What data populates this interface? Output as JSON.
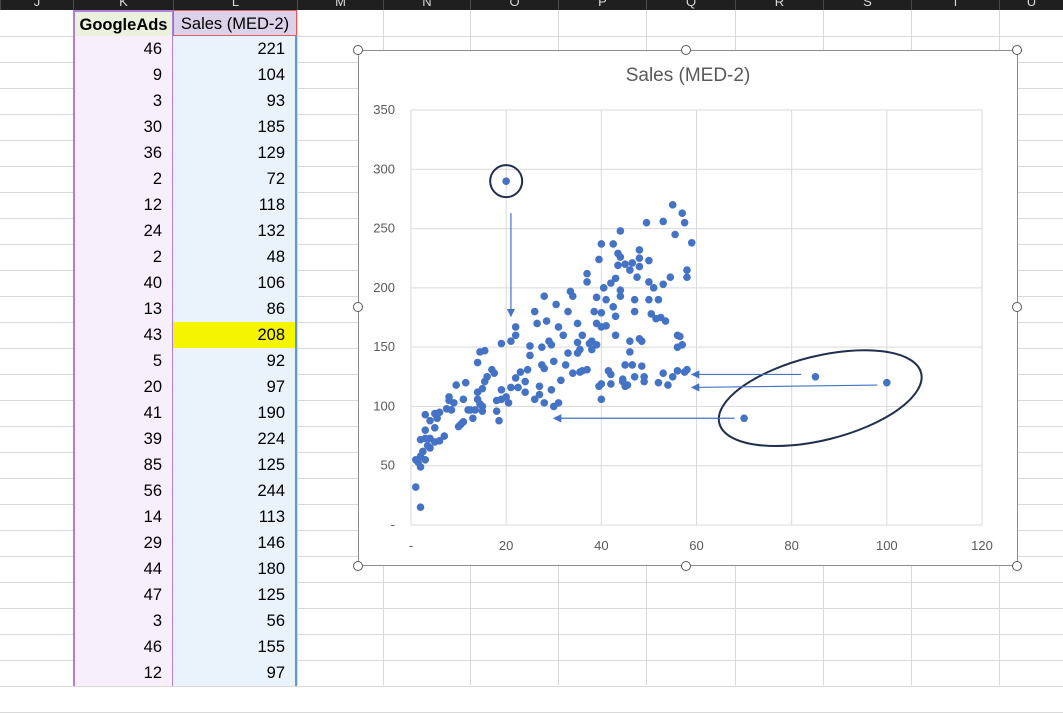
{
  "column_letters": [
    "J",
    "K",
    "L",
    "M",
    "N",
    "O",
    "P",
    "Q",
    "R",
    "S",
    "T",
    "U"
  ],
  "table": {
    "header_k": "GoogleAds",
    "header_l": "Sales (MED-2)",
    "rows": [
      {
        "k": "46",
        "l": "221"
      },
      {
        "k": "9",
        "l": "104"
      },
      {
        "k": "3",
        "l": "93"
      },
      {
        "k": "30",
        "l": "185"
      },
      {
        "k": "36",
        "l": "129"
      },
      {
        "k": "2",
        "l": "72"
      },
      {
        "k": "12",
        "l": "118"
      },
      {
        "k": "24",
        "l": "132"
      },
      {
        "k": "2",
        "l": "48"
      },
      {
        "k": "40",
        "l": "106"
      },
      {
        "k": "13",
        "l": "86"
      },
      {
        "k": "43",
        "l": "208"
      },
      {
        "k": "5",
        "l": "92"
      },
      {
        "k": "20",
        "l": "97"
      },
      {
        "k": "41",
        "l": "190"
      },
      {
        "k": "39",
        "l": "224"
      },
      {
        "k": "85",
        "l": "125"
      },
      {
        "k": "56",
        "l": "244"
      },
      {
        "k": "14",
        "l": "113"
      },
      {
        "k": "29",
        "l": "146"
      },
      {
        "k": "44",
        "l": "180"
      },
      {
        "k": "47",
        "l": "125"
      },
      {
        "k": "3",
        "l": "56"
      },
      {
        "k": "46",
        "l": "155"
      },
      {
        "k": "12",
        "l": "97"
      }
    ],
    "highlight_color": "#f5f500"
  },
  "chart_data": {
    "type": "scatter",
    "title": "Sales (MED-2)",
    "xlim": [
      0,
      120
    ],
    "ylim": [
      0,
      350
    ],
    "x_ticks": [
      "-",
      "20",
      "40",
      "60",
      "80",
      "100",
      "120"
    ],
    "y_ticks": [
      "-",
      "50",
      "100",
      "150",
      "200",
      "250",
      "300",
      "350"
    ],
    "grid": true,
    "marker_color": "#4472c4",
    "points": [
      [
        1,
        32
      ],
      [
        2,
        15
      ],
      [
        1,
        55
      ],
      [
        1.5,
        53
      ],
      [
        2,
        49
      ],
      [
        2,
        58
      ],
      [
        2,
        72
      ],
      [
        2.5,
        62
      ],
      [
        3,
        73
      ],
      [
        3,
        55
      ],
      [
        3,
        80
      ],
      [
        3,
        93
      ],
      [
        3.5,
        67
      ],
      [
        4,
        88
      ],
      [
        4,
        65
      ],
      [
        4,
        73
      ],
      [
        5,
        70
      ],
      [
        5,
        82
      ],
      [
        5,
        94
      ],
      [
        5.5,
        90
      ],
      [
        6,
        95
      ],
      [
        6,
        71
      ],
      [
        7,
        75
      ],
      [
        7.5,
        98
      ],
      [
        8,
        108
      ],
      [
        8,
        105
      ],
      [
        8.5,
        97
      ],
      [
        9,
        103
      ],
      [
        9.5,
        118
      ],
      [
        10,
        83
      ],
      [
        10.5,
        85
      ],
      [
        11,
        87
      ],
      [
        11,
        106
      ],
      [
        11.5,
        120
      ],
      [
        12,
        97
      ],
      [
        12.5,
        97
      ],
      [
        13,
        90
      ],
      [
        13.5,
        97
      ],
      [
        14,
        106
      ],
      [
        14,
        112
      ],
      [
        14.5,
        102
      ],
      [
        15,
        115
      ],
      [
        15,
        96
      ],
      [
        15,
        100
      ],
      [
        15.5,
        121
      ],
      [
        16,
        125
      ],
      [
        14.5,
        146
      ],
      [
        14,
        137
      ],
      [
        15.5,
        147
      ],
      [
        17,
        131
      ],
      [
        17.5,
        128
      ],
      [
        18,
        105
      ],
      [
        18,
        96
      ],
      [
        18.5,
        88
      ],
      [
        19,
        106
      ],
      [
        19,
        153
      ],
      [
        19,
        114
      ],
      [
        20,
        108
      ],
      [
        20.5,
        103
      ],
      [
        21,
        155
      ],
      [
        21,
        116
      ],
      [
        22,
        124
      ],
      [
        22,
        160
      ],
      [
        22,
        167
      ],
      [
        22.5,
        116
      ],
      [
        23,
        129
      ],
      [
        24,
        112
      ],
      [
        24,
        121
      ],
      [
        24.5,
        131
      ],
      [
        25,
        151
      ],
      [
        25,
        143
      ],
      [
        26,
        106
      ],
      [
        26,
        180
      ],
      [
        26.5,
        170
      ],
      [
        27,
        110
      ],
      [
        27,
        117
      ],
      [
        27.5,
        135
      ],
      [
        27.5,
        150
      ],
      [
        28,
        132
      ],
      [
        28,
        193
      ],
      [
        28,
        103
      ],
      [
        28.5,
        172
      ],
      [
        29,
        155
      ],
      [
        29.5,
        114
      ],
      [
        29.5,
        152
      ],
      [
        30,
        138
      ],
      [
        30,
        100
      ],
      [
        30.5,
        186
      ],
      [
        31,
        103
      ],
      [
        31,
        167
      ],
      [
        31.5,
        122
      ],
      [
        32,
        160
      ],
      [
        32.5,
        135
      ],
      [
        33,
        180
      ],
      [
        33,
        145
      ],
      [
        33.5,
        197
      ],
      [
        34,
        128
      ],
      [
        34,
        193
      ],
      [
        35,
        170
      ],
      [
        35,
        154
      ],
      [
        35,
        145
      ],
      [
        35.5,
        129
      ],
      [
        35.5,
        148
      ],
      [
        36,
        160
      ],
      [
        36,
        130
      ],
      [
        37,
        205
      ],
      [
        37,
        212
      ],
      [
        37,
        131
      ],
      [
        37.5,
        153
      ],
      [
        38,
        155
      ],
      [
        38,
        148
      ],
      [
        38.5,
        180
      ],
      [
        39,
        192
      ],
      [
        39,
        170
      ],
      [
        39,
        152
      ],
      [
        39.5,
        117
      ],
      [
        40,
        119
      ],
      [
        40,
        106
      ],
      [
        39.5,
        224
      ],
      [
        40,
        237
      ],
      [
        40,
        179
      ],
      [
        40,
        167
      ],
      [
        40.5,
        200
      ],
      [
        41,
        190
      ],
      [
        41,
        168
      ],
      [
        41.5,
        130
      ],
      [
        42,
        119
      ],
      [
        42,
        127
      ],
      [
        42.5,
        237
      ],
      [
        42,
        204
      ],
      [
        42.5,
        184
      ],
      [
        43,
        176
      ],
      [
        43,
        160
      ],
      [
        43,
        208
      ],
      [
        43.5,
        229
      ],
      [
        43.5,
        219
      ],
      [
        44,
        226
      ],
      [
        44,
        248
      ],
      [
        44,
        193
      ],
      [
        44,
        198
      ],
      [
        44.5,
        121
      ],
      [
        44.5,
        123
      ],
      [
        45,
        220
      ],
      [
        45,
        117
      ],
      [
        45,
        135
      ],
      [
        45.5,
        118
      ],
      [
        46,
        155
      ],
      [
        46,
        146
      ],
      [
        46.5,
        221
      ],
      [
        46,
        215
      ],
      [
        46.5,
        135
      ],
      [
        47,
        125
      ],
      [
        47,
        180
      ],
      [
        47,
        190
      ],
      [
        47.5,
        209
      ],
      [
        48,
        232
      ],
      [
        48,
        225
      ],
      [
        48,
        218
      ],
      [
        48,
        157
      ],
      [
        48.5,
        134
      ],
      [
        48.5,
        155
      ],
      [
        49,
        121
      ],
      [
        49,
        125
      ],
      [
        49.5,
        255
      ],
      [
        50,
        190
      ],
      [
        50,
        205
      ],
      [
        50,
        223
      ],
      [
        50.5,
        178
      ],
      [
        51,
        200
      ],
      [
        51.5,
        174
      ],
      [
        52,
        120
      ],
      [
        52,
        190
      ],
      [
        52.5,
        175
      ],
      [
        53,
        128
      ],
      [
        53,
        203
      ],
      [
        53,
        256
      ],
      [
        53.5,
        172
      ],
      [
        54,
        118
      ],
      [
        54.5,
        209
      ],
      [
        55,
        125
      ],
      [
        55,
        270
      ],
      [
        55.5,
        245
      ],
      [
        56,
        160
      ],
      [
        56,
        130
      ],
      [
        56,
        150
      ],
      [
        56.5,
        159
      ],
      [
        57,
        263
      ],
      [
        57,
        152
      ],
      [
        57.5,
        255
      ],
      [
        57.5,
        129
      ],
      [
        58,
        209
      ],
      [
        58,
        215
      ],
      [
        58,
        131
      ],
      [
        59,
        238
      ],
      [
        85,
        125
      ],
      [
        100,
        120
      ],
      [
        70,
        90
      ],
      [
        20,
        290
      ]
    ],
    "annotations": {
      "circled_point": [
        20,
        290
      ],
      "ellipse_center": [
        86,
        107
      ],
      "arrows": [
        {
          "from": [
            21,
            263
          ],
          "to": [
            21,
            176
          ]
        },
        {
          "from": [
            82,
            127
          ],
          "to": [
            59,
            127
          ]
        },
        {
          "from": [
            98,
            118
          ],
          "to": [
            59,
            116
          ]
        },
        {
          "from": [
            68,
            90
          ],
          "to": [
            30,
            90
          ]
        }
      ]
    }
  }
}
